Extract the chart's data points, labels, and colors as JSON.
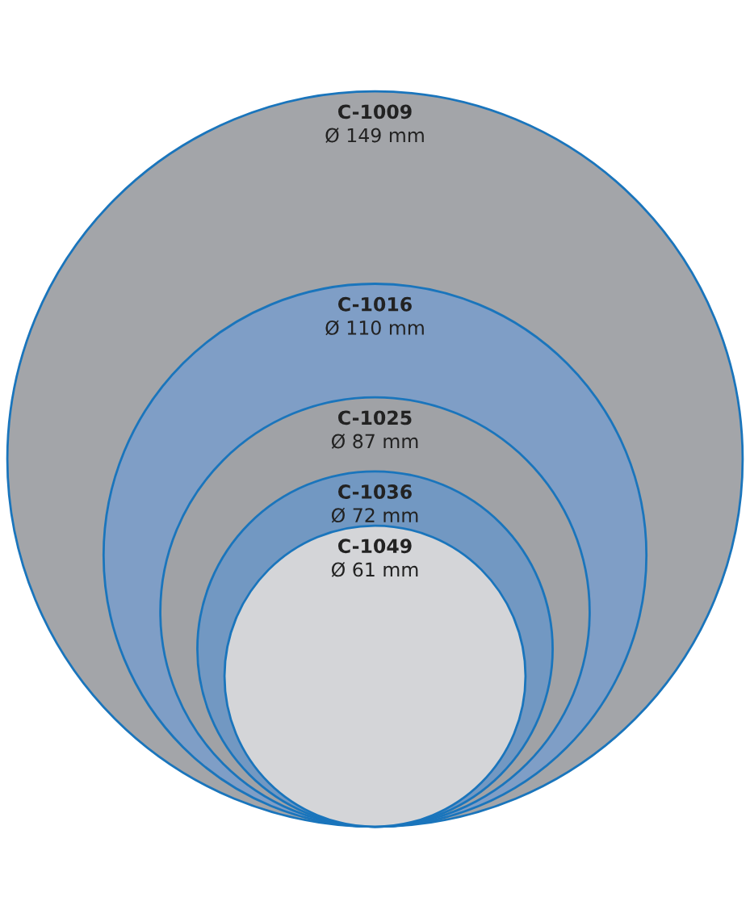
{
  "chart_data": {
    "type": "other",
    "categories": [
      "C-1009",
      "C-1016",
      "C-1025",
      "C-1036",
      "C-1049"
    ],
    "values": [
      149,
      110,
      87,
      72,
      61
    ],
    "value_labels": [
      "Ø 149 mm",
      "Ø 110 mm",
      "Ø 87 mm",
      "Ø 72 mm",
      "Ø 61 mm"
    ],
    "colors": [
      "#a3a5a9",
      "#7f9ec6",
      "#a0a2a6",
      "#7298c2",
      "#d4d5d8"
    ]
  }
}
